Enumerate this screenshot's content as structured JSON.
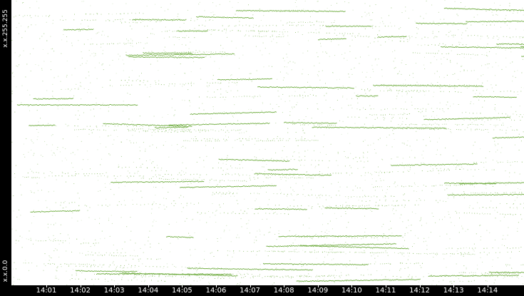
{
  "chart_data": {
    "type": "scatter",
    "title": "",
    "xlabel": "",
    "ylabel": "",
    "y_tick_labels": [
      "x.x.255.255",
      "x.x.0.0"
    ],
    "x_tick_labels": [
      "14:01",
      "14:02",
      "14:03",
      "14:04",
      "14:05",
      "14:06",
      "14:07",
      "14:08",
      "14:09",
      "14:10",
      "14:11",
      "14:12",
      "14:13",
      "14:14"
    ],
    "x_range_minutes": [
      0.0,
      15.0
    ],
    "y_range": [
      0,
      65535
    ],
    "point_color": "#6aaa3a",
    "grid": false,
    "legend": "none"
  }
}
